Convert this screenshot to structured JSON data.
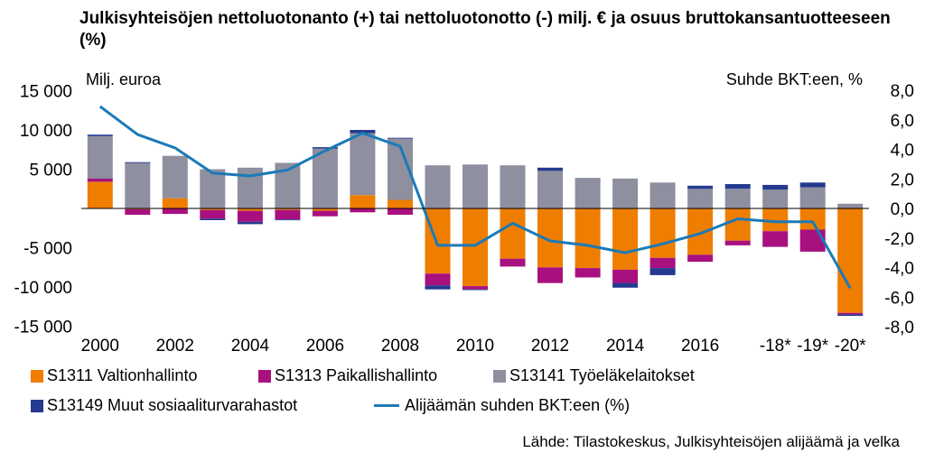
{
  "title": "Julkisyhteisöjen nettoluotonanto (+) tai nettoluotonotto (-) milj. € ja osuus bruttokansantuotteeseen (%)",
  "source": "Lähde: Tilastokeskus, Julkisyhteisöjen alijäämä ja velka",
  "colors": {
    "valtionhallinto": "#ef7d00",
    "paikallishallinto": "#a8107f",
    "tyoelake": "#8e8f9f",
    "muut": "#253a8f",
    "line": "#1a7ab8"
  },
  "chart_data": {
    "type": "bar",
    "stacked": true,
    "categories": [
      "2000",
      "2001",
      "2002",
      "2003",
      "2004",
      "2005",
      "2006",
      "2007",
      "2008",
      "2009",
      "2010",
      "2011",
      "2012",
      "2013",
      "2014",
      "2015",
      "2016",
      "2017",
      "-18*",
      "-19*",
      "-20*"
    ],
    "x_tick_labels": [
      "2000",
      "2002",
      "2004",
      "2006",
      "2008",
      "2010",
      "2012",
      "2014",
      "2016",
      "-18*",
      "-19*",
      "-20*"
    ],
    "x_tick_indices": [
      0,
      2,
      4,
      6,
      8,
      10,
      12,
      14,
      16,
      18,
      19,
      20
    ],
    "ylabel_left": "Milj. euroa",
    "ylabel_right": "Suhde BKT:een, %",
    "ylim_left": [
      -15000,
      15000
    ],
    "yticks_left": [
      15000,
      10000,
      5000,
      0,
      -5000,
      -10000,
      -15000
    ],
    "ytick_labels_left": [
      "15 000",
      "10 000",
      "5 000",
      "",
      "-5 000",
      "-10 000",
      "-15 000"
    ],
    "ylim_right": [
      -8,
      8
    ],
    "yticks_right": [
      8,
      6,
      4,
      2,
      0,
      -2,
      -4,
      -6,
      -8
    ],
    "ytick_labels_right": [
      "8,0",
      "6,0",
      "4,0",
      "2,0",
      "0,0",
      "-2,0",
      "-4,0",
      "-6,0",
      "-8,0"
    ],
    "series": [
      {
        "name": "S1311 Valtionhallinto",
        "color_key": "valtionhallinto",
        "axis": "left",
        "values": [
          3400,
          -100,
          1300,
          -200,
          -300,
          -200,
          -300,
          1700,
          1100,
          -8300,
          -9900,
          -6400,
          -7500,
          -7600,
          -7800,
          -6300,
          -5900,
          -4100,
          -2900,
          -2700,
          -13300
        ]
      },
      {
        "name": "S1313 Paikallishallinto",
        "color_key": "paikallishallinto",
        "axis": "left",
        "values": [
          400,
          -700,
          -700,
          -1100,
          -1400,
          -1200,
          -700,
          -500,
          -800,
          -1500,
          -400,
          -1000,
          -2000,
          -1200,
          -1700,
          -1300,
          -900,
          -600,
          -2000,
          -2800,
          -200
        ]
      },
      {
        "name": "S13141 Työeläkelaitokset",
        "color_key": "tyoelake",
        "axis": "left",
        "values": [
          5400,
          5800,
          5400,
          5000,
          5200,
          5800,
          7600,
          7900,
          7800,
          5500,
          5600,
          5500,
          4800,
          3900,
          3800,
          3300,
          2500,
          2500,
          2400,
          2700,
          600
        ]
      },
      {
        "name": "S13149  Muut sosiaaliturvarahastot",
        "color_key": "muut",
        "axis": "left",
        "values": [
          200,
          100,
          0,
          -200,
          -300,
          -100,
          200,
          400,
          100,
          -500,
          -100,
          0,
          400,
          0,
          -600,
          -900,
          400,
          600,
          600,
          600,
          -200
        ]
      },
      {
        "name": "Alijäämän suhden BKT:een (%)",
        "color_key": "line",
        "axis": "right",
        "type": "line",
        "values": [
          6.9,
          5.0,
          4.1,
          2.4,
          2.2,
          2.6,
          3.9,
          5.1,
          4.2,
          -2.5,
          -2.5,
          -1.0,
          -2.2,
          -2.5,
          -3.0,
          -2.4,
          -1.7,
          -0.7,
          -0.9,
          -0.9,
          -5.4
        ]
      }
    ]
  }
}
